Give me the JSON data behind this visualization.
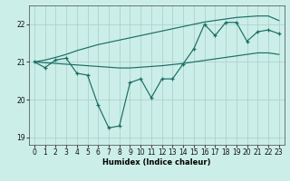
{
  "xlabel": "Humidex (Indice chaleur)",
  "bg_color": "#cceee8",
  "grid_color": "#aad4cc",
  "line_color": "#1a6e64",
  "x": [
    0,
    1,
    2,
    3,
    4,
    5,
    6,
    7,
    8,
    9,
    10,
    11,
    12,
    13,
    14,
    15,
    16,
    17,
    18,
    19,
    20,
    21,
    22,
    23
  ],
  "y_main": [
    21.0,
    20.85,
    21.05,
    21.1,
    20.7,
    20.65,
    19.85,
    19.25,
    19.3,
    20.45,
    20.55,
    20.05,
    20.55,
    20.55,
    20.95,
    21.35,
    22.0,
    21.7,
    22.05,
    22.05,
    21.55,
    21.8,
    21.85,
    21.75
  ],
  "y_upper": [
    21.0,
    21.05,
    21.12,
    21.2,
    21.3,
    21.38,
    21.46,
    21.52,
    21.58,
    21.64,
    21.7,
    21.76,
    21.82,
    21.88,
    21.94,
    22.0,
    22.06,
    22.1,
    22.14,
    22.18,
    22.2,
    22.22,
    22.22,
    22.1
  ],
  "y_lower": [
    21.0,
    20.98,
    20.96,
    20.94,
    20.92,
    20.9,
    20.88,
    20.86,
    20.84,
    20.84,
    20.86,
    20.88,
    20.9,
    20.93,
    20.96,
    21.0,
    21.04,
    21.08,
    21.12,
    21.16,
    21.2,
    21.24,
    21.24,
    21.2
  ],
  "ylim": [
    18.8,
    22.5
  ],
  "xlim": [
    -0.5,
    23.5
  ],
  "yticks": [
    19,
    20,
    21,
    22
  ],
  "xticks": [
    0,
    1,
    2,
    3,
    4,
    5,
    6,
    7,
    8,
    9,
    10,
    11,
    12,
    13,
    14,
    15,
    16,
    17,
    18,
    19,
    20,
    21,
    22,
    23
  ]
}
